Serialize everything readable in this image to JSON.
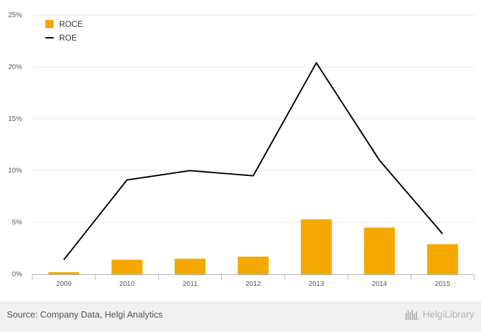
{
  "chart_data": {
    "type": "bar",
    "categories": [
      "2009",
      "2010",
      "2011",
      "2012",
      "2013",
      "2014",
      "2015"
    ],
    "series": [
      {
        "name": "ROCE",
        "kind": "bar",
        "color": "#f5a800",
        "values": [
          0.2,
          1.4,
          1.5,
          1.7,
          5.3,
          4.5,
          2.9
        ]
      },
      {
        "name": "ROE",
        "kind": "line",
        "color": "#000000",
        "values": [
          1.4,
          9.1,
          10.0,
          9.5,
          20.4,
          11.0,
          3.9
        ]
      }
    ],
    "y_ticks": [
      "0%",
      "5%",
      "10%",
      "15%",
      "20%",
      "25%"
    ],
    "ylim": [
      0,
      25
    ],
    "grid": true,
    "legend_position": "top-left"
  },
  "footer": {
    "source": "Source: Company Data, Helgi Analytics",
    "brand": "HelgiLibrary"
  }
}
